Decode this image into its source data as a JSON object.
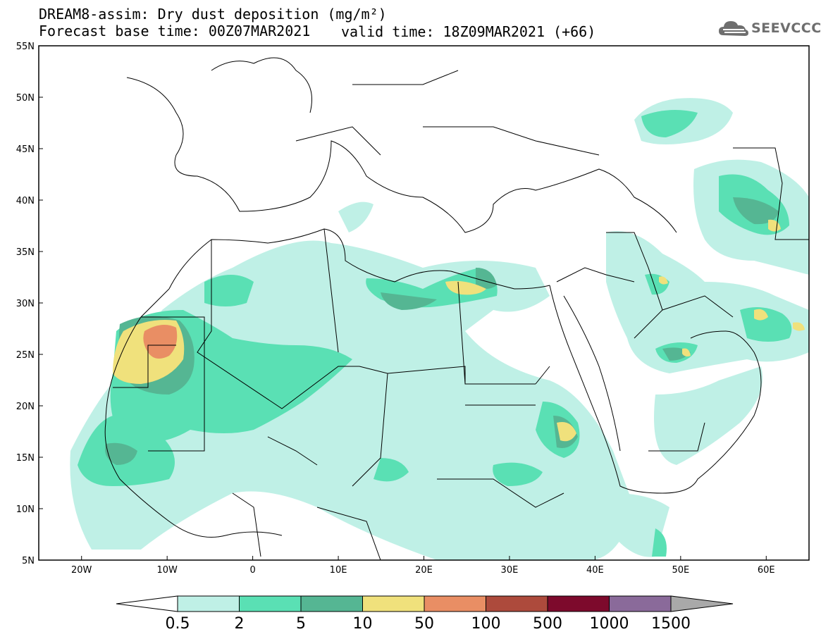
{
  "header": {
    "title": "DREAM8-assim: Dry dust deposition (mg/m²)",
    "base_time": "Forecast base time: 00Z07MAR2021",
    "valid_time": "valid time: 18Z09MAR2021 (+66)",
    "logo_text": "SEEVCCC",
    "logo_icon": "cloud-logo-icon"
  },
  "axes": {
    "lat_labels": [
      "55N",
      "50N",
      "45N",
      "40N",
      "35N",
      "30N",
      "25N",
      "20N",
      "15N",
      "10N",
      "5N"
    ],
    "lon_labels": [
      "20W",
      "10W",
      "0",
      "10E",
      "20E",
      "30E",
      "40E",
      "50E",
      "60E"
    ],
    "lat_range": [
      5,
      55
    ],
    "lon_range": [
      -25,
      65
    ]
  },
  "colorbar": {
    "labels": [
      "0.5",
      "2",
      "5",
      "10",
      "50",
      "100",
      "500",
      "1000",
      "1500"
    ],
    "colors": [
      "#bff0e6",
      "#5ae0b4",
      "#55b693",
      "#f0e17c",
      "#e98e64",
      "#ad4a3c",
      "#7d0a2c",
      "#8a6a9a",
      "#a9a9a9"
    ]
  },
  "map_description_layers": {
    "background": "#ffffff",
    "border_color": "#000000"
  }
}
